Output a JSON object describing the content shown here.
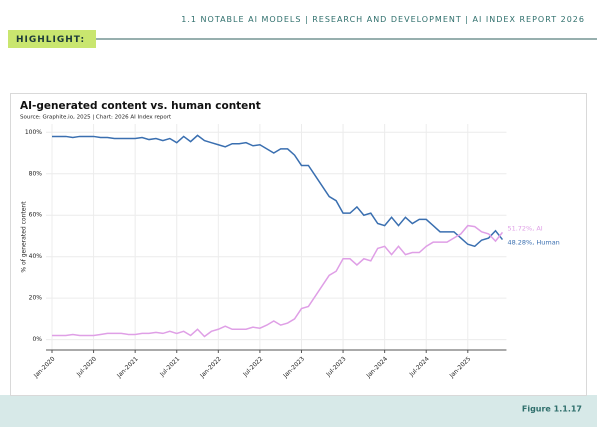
{
  "header": {
    "items": [
      "1.1 NOTABLE AI MODELS",
      "RESEARCH AND DEVELOPMENT",
      "AI INDEX REPORT 2026"
    ],
    "highlight": "HIGHLIGHT:"
  },
  "chart_data": {
    "type": "line",
    "title": "AI-generated content vs. human content",
    "subtitle": "Source: Graphite.io, 2025 | Chart: 2026 AI Index report",
    "y_label": "% of generated content",
    "categories": [
      "Jan-2020",
      null,
      null,
      null,
      null,
      null,
      "Jul-2020",
      null,
      null,
      null,
      null,
      null,
      "Jan-2021",
      null,
      null,
      null,
      null,
      null,
      "Jul-2021",
      null,
      null,
      null,
      null,
      null,
      "Jan-2022",
      null,
      null,
      null,
      null,
      null,
      "Jul-2022",
      null,
      null,
      null,
      null,
      null,
      "Jan-2023",
      null,
      null,
      null,
      null,
      null,
      "Jul-2023",
      null,
      null,
      null,
      null,
      null,
      "Jan-2024",
      null,
      null,
      null,
      null,
      null,
      "Jul-2024",
      null,
      null,
      null,
      null,
      null,
      "Jan-2025",
      null,
      null,
      null,
      null,
      null
    ],
    "series": [
      {
        "name": "Human",
        "color": "#3a6fb0",
        "end_label": "48.28%, Human",
        "values": [
          98,
          98,
          98,
          97.5,
          98,
          98,
          98,
          97.5,
          97.5,
          97,
          97,
          97,
          97,
          97.5,
          96.5,
          97,
          96,
          97,
          95,
          98,
          95.5,
          98.5,
          96,
          95,
          94,
          93,
          94.5,
          94.5,
          95,
          93.5,
          94,
          92,
          90,
          92,
          92,
          89,
          84,
          84,
          79,
          74,
          69,
          67,
          61,
          61,
          64,
          60,
          61,
          56,
          55,
          59,
          55,
          59,
          56,
          58,
          58,
          55,
          52,
          52,
          52,
          49,
          46,
          45,
          48,
          49,
          52.5,
          48.28
        ]
      },
      {
        "name": "AI",
        "color": "#df9fe6",
        "end_label": "51.72%, AI",
        "values": [
          2,
          2,
          2,
          2.5,
          2,
          2,
          2,
          2.5,
          3,
          3,
          3,
          2.5,
          2.5,
          3,
          3,
          3.5,
          3,
          4,
          3,
          4,
          2,
          5,
          1.5,
          4,
          5,
          6.5,
          5,
          5,
          5,
          6,
          5.5,
          7,
          9,
          7,
          8,
          10,
          15,
          16,
          21,
          26,
          31,
          33,
          39,
          39,
          36,
          39,
          38,
          44,
          45,
          41,
          45,
          41,
          42,
          42,
          45,
          47,
          47,
          47,
          49,
          51,
          55,
          54.5,
          52,
          51,
          47.5,
          51.72
        ]
      }
    ],
    "ylim": [
      -5,
      104
    ],
    "yticks": [
      {
        "value": 0,
        "label": "0%"
      },
      {
        "value": 20,
        "label": "20%"
      },
      {
        "value": 40,
        "label": "40%"
      },
      {
        "value": 60,
        "label": "60%"
      },
      {
        "value": 80,
        "label": "80%"
      },
      {
        "value": 100,
        "label": "100%"
      }
    ],
    "grid": true
  },
  "figure_label": "Figure 1.1.17"
}
